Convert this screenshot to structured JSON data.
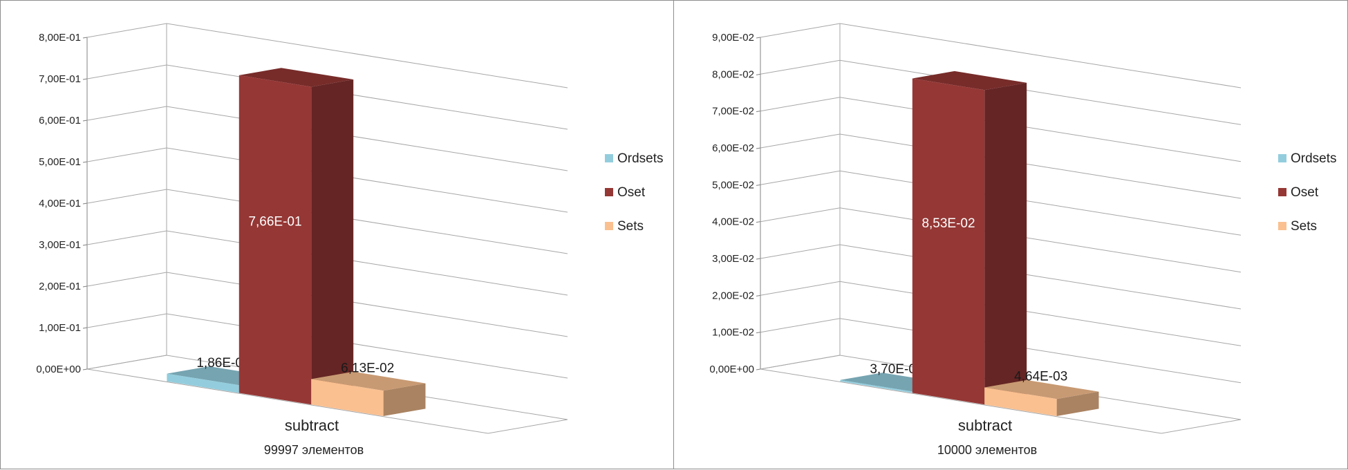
{
  "chart_data": [
    {
      "type": "bar",
      "categories": [
        "subtract"
      ],
      "subtitle": "99997 элементов",
      "series": [
        {
          "name": "Ordsets",
          "values": [
            0.0186
          ],
          "label": "1,86E-02",
          "color": "#93cddd"
        },
        {
          "name": "Oset",
          "values": [
            0.766
          ],
          "label": "7,66E-01",
          "color": "#953735"
        },
        {
          "name": "Sets",
          "values": [
            0.0613
          ],
          "label": "6,13E-02",
          "color": "#fac090"
        }
      ],
      "ylim": [
        0,
        0.8
      ],
      "yticks": [
        0,
        0.1,
        0.2,
        0.3,
        0.4,
        0.5,
        0.6,
        0.7,
        0.8
      ],
      "ytick_labels": [
        "0,00E+00",
        "1,00E-01",
        "2,00E-01",
        "3,00E-01",
        "4,00E-01",
        "5,00E-01",
        "6,00E-01",
        "7,00E-01",
        "8,00E-01"
      ],
      "grid": true,
      "legend": "right"
    },
    {
      "type": "bar",
      "categories": [
        "subtract"
      ],
      "subtitle": "10000 элементов",
      "series": [
        {
          "name": "Ordsets",
          "values": [
            0.00037
          ],
          "label": "3,70E-04",
          "color": "#93cddd"
        },
        {
          "name": "Oset",
          "values": [
            0.0853
          ],
          "label": "8,53E-02",
          "color": "#953735"
        },
        {
          "name": "Sets",
          "values": [
            0.00464
          ],
          "label": "4,64E-03",
          "color": "#fac090"
        }
      ],
      "ylim": [
        0,
        0.09
      ],
      "yticks": [
        0,
        0.01,
        0.02,
        0.03,
        0.04,
        0.05,
        0.06,
        0.07,
        0.08,
        0.09
      ],
      "ytick_labels": [
        "0,00E+00",
        "1,00E-02",
        "2,00E-02",
        "3,00E-02",
        "4,00E-02",
        "5,00E-02",
        "6,00E-02",
        "7,00E-02",
        "8,00E-02",
        "9,00E-02"
      ],
      "grid": true,
      "legend": "right"
    }
  ]
}
